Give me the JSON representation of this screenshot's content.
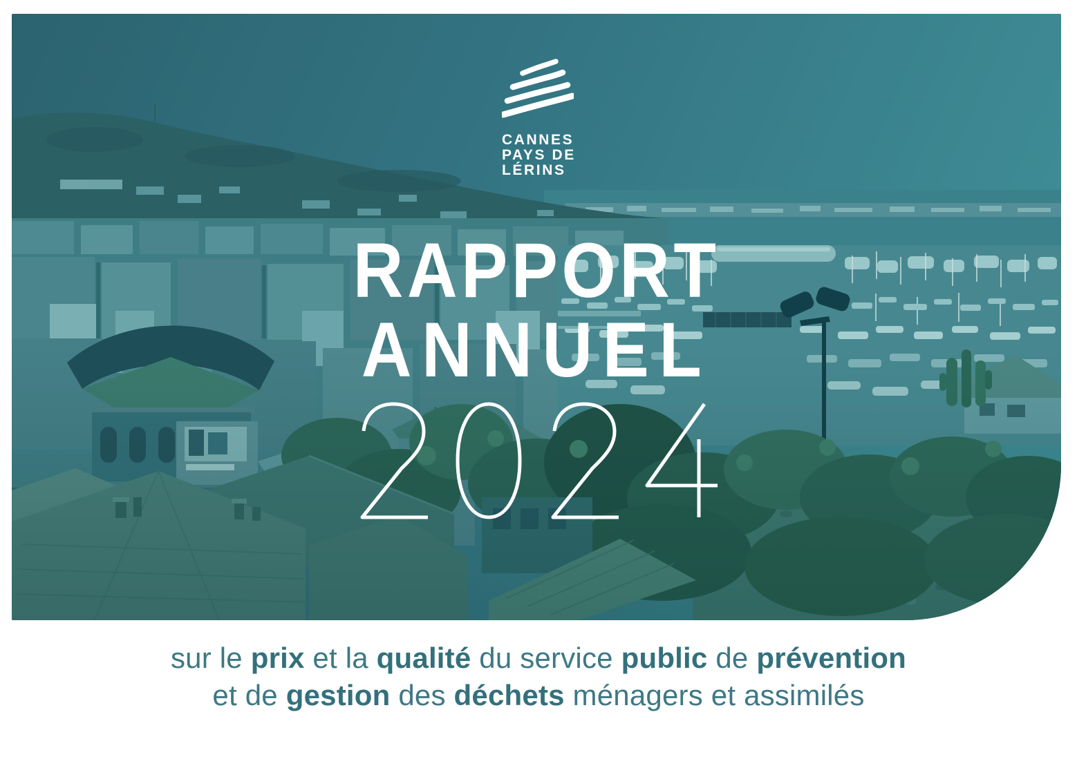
{
  "page": {
    "type": "annual-report-cover"
  },
  "logo": {
    "waves_icon": "brush-waves-icon",
    "line1": "CANNES",
    "line2": "PAYS DE",
    "line3": "LÉRINS"
  },
  "title": {
    "line1": "RAPPORT",
    "line2": "ANNUEL",
    "year": "2024"
  },
  "subtitle": {
    "lines": [
      [
        {
          "text": "sur le ",
          "bold": false
        },
        {
          "text": "prix",
          "bold": true
        },
        {
          "text": " et la ",
          "bold": false
        },
        {
          "text": "qualité",
          "bold": true
        },
        {
          "text": " du service ",
          "bold": false
        },
        {
          "text": "public",
          "bold": true
        },
        {
          "text": " de ",
          "bold": false
        },
        {
          "text": "prévention",
          "bold": true
        }
      ],
      [
        {
          "text": "et de ",
          "bold": false
        },
        {
          "text": "gestion",
          "bold": true
        },
        {
          "text": " des ",
          "bold": false
        },
        {
          "text": "déchets",
          "bold": true
        },
        {
          "text": " ménagers et assimilés",
          "bold": false
        }
      ]
    ]
  },
  "colors": {
    "accent_teal": "#2f7079",
    "subtitle_text": "#3d7884",
    "title_text": "#ffffff",
    "logo_text": "#ffffff"
  }
}
